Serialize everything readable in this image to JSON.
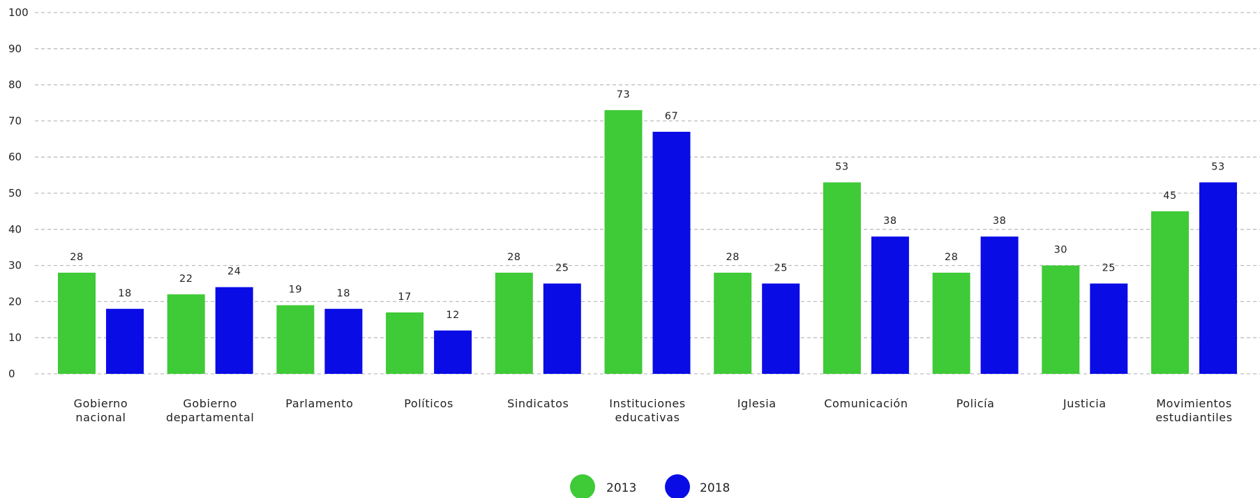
{
  "chart_data": {
    "type": "bar",
    "categories": [
      [
        "Gobierno",
        "nacional"
      ],
      [
        "Gobierno",
        "departamental"
      ],
      [
        "Parlamento"
      ],
      [
        "Políticos"
      ],
      [
        "Sindicatos"
      ],
      [
        "Instituciones",
        "educativas"
      ],
      [
        "Iglesia"
      ],
      [
        "Comunicación"
      ],
      [
        "Policía"
      ],
      [
        "Justicia"
      ],
      [
        "Movimientos",
        "estudiantiles"
      ]
    ],
    "series": [
      {
        "name": "2013",
        "color": "#3fca38",
        "values": [
          28,
          22,
          19,
          17,
          28,
          73,
          28,
          53,
          28,
          30,
          45
        ]
      },
      {
        "name": "2018",
        "color": "#0a0ce6",
        "values": [
          18,
          24,
          18,
          12,
          25,
          67,
          25,
          38,
          38,
          25,
          53
        ]
      }
    ],
    "yticks": [
      0,
      10,
      20,
      30,
      40,
      50,
      60,
      70,
      80,
      90,
      100
    ],
    "ylim": [
      0,
      100
    ],
    "grid": true,
    "legend_position": "bottom-center"
  }
}
